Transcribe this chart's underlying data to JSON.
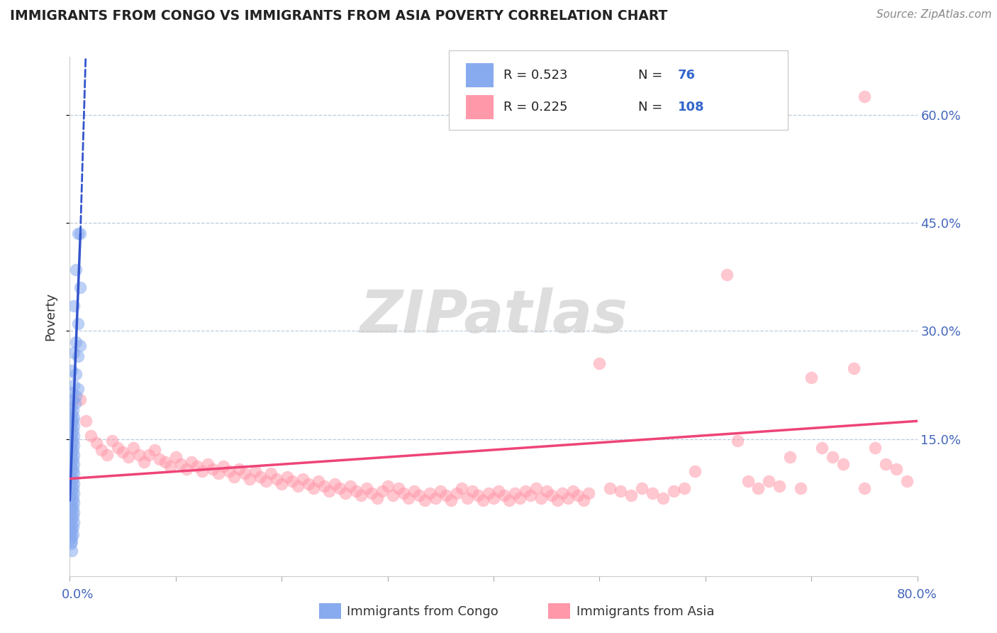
{
  "title": "IMMIGRANTS FROM CONGO VS IMMIGRANTS FROM ASIA POVERTY CORRELATION CHART",
  "source": "Source: ZipAtlas.com",
  "ylabel": "Poverty",
  "ytick_vals": [
    0.15,
    0.3,
    0.45,
    0.6
  ],
  "ytick_labels": [
    "15.0%",
    "30.0%",
    "45.0%",
    "60.0%"
  ],
  "xlim": [
    0.0,
    0.8
  ],
  "ylim": [
    -0.04,
    0.68
  ],
  "color_congo": "#88AAEE",
  "color_asia": "#FF99AA",
  "color_congo_line": "#3355CC",
  "color_asia_line": "#EE4477",
  "watermark": "ZIPatlas",
  "congo_points": [
    [
      0.008,
      0.435
    ],
    [
      0.01,
      0.435
    ],
    [
      0.006,
      0.385
    ],
    [
      0.01,
      0.36
    ],
    [
      0.004,
      0.335
    ],
    [
      0.008,
      0.31
    ],
    [
      0.006,
      0.285
    ],
    [
      0.01,
      0.28
    ],
    [
      0.004,
      0.27
    ],
    [
      0.008,
      0.265
    ],
    [
      0.002,
      0.245
    ],
    [
      0.006,
      0.24
    ],
    [
      0.004,
      0.225
    ],
    [
      0.008,
      0.22
    ],
    [
      0.002,
      0.215
    ],
    [
      0.006,
      0.21
    ],
    [
      0.003,
      0.205
    ],
    [
      0.005,
      0.2
    ],
    [
      0.001,
      0.195
    ],
    [
      0.003,
      0.19
    ],
    [
      0.002,
      0.185
    ],
    [
      0.004,
      0.18
    ],
    [
      0.001,
      0.178
    ],
    [
      0.003,
      0.175
    ],
    [
      0.002,
      0.172
    ],
    [
      0.004,
      0.168
    ],
    [
      0.001,
      0.165
    ],
    [
      0.003,
      0.162
    ],
    [
      0.002,
      0.158
    ],
    [
      0.004,
      0.155
    ],
    [
      0.001,
      0.152
    ],
    [
      0.003,
      0.148
    ],
    [
      0.002,
      0.145
    ],
    [
      0.004,
      0.142
    ],
    [
      0.001,
      0.138
    ],
    [
      0.003,
      0.135
    ],
    [
      0.002,
      0.132
    ],
    [
      0.004,
      0.128
    ],
    [
      0.001,
      0.125
    ],
    [
      0.003,
      0.122
    ],
    [
      0.002,
      0.118
    ],
    [
      0.004,
      0.115
    ],
    [
      0.001,
      0.112
    ],
    [
      0.003,
      0.108
    ],
    [
      0.002,
      0.105
    ],
    [
      0.004,
      0.102
    ],
    [
      0.001,
      0.098
    ],
    [
      0.003,
      0.095
    ],
    [
      0.002,
      0.092
    ],
    [
      0.004,
      0.088
    ],
    [
      0.001,
      0.085
    ],
    [
      0.003,
      0.082
    ],
    [
      0.002,
      0.078
    ],
    [
      0.004,
      0.075
    ],
    [
      0.001,
      0.072
    ],
    [
      0.003,
      0.068
    ],
    [
      0.002,
      0.065
    ],
    [
      0.004,
      0.062
    ],
    [
      0.001,
      0.058
    ],
    [
      0.003,
      0.055
    ],
    [
      0.002,
      0.052
    ],
    [
      0.004,
      0.048
    ],
    [
      0.001,
      0.045
    ],
    [
      0.003,
      0.042
    ],
    [
      0.002,
      0.038
    ],
    [
      0.004,
      0.035
    ],
    [
      0.001,
      0.032
    ],
    [
      0.003,
      0.028
    ],
    [
      0.002,
      0.025
    ],
    [
      0.001,
      0.022
    ],
    [
      0.003,
      0.018
    ],
    [
      0.002,
      0.015
    ],
    [
      0.001,
      0.012
    ],
    [
      0.002,
      0.008
    ],
    [
      0.001,
      0.005
    ],
    [
      0.002,
      -0.005
    ]
  ],
  "asia_points": [
    [
      0.01,
      0.205
    ],
    [
      0.015,
      0.175
    ],
    [
      0.02,
      0.155
    ],
    [
      0.025,
      0.145
    ],
    [
      0.03,
      0.135
    ],
    [
      0.035,
      0.128
    ],
    [
      0.04,
      0.148
    ],
    [
      0.045,
      0.138
    ],
    [
      0.05,
      0.132
    ],
    [
      0.055,
      0.125
    ],
    [
      0.06,
      0.138
    ],
    [
      0.065,
      0.128
    ],
    [
      0.07,
      0.118
    ],
    [
      0.075,
      0.128
    ],
    [
      0.08,
      0.135
    ],
    [
      0.085,
      0.122
    ],
    [
      0.09,
      0.118
    ],
    [
      0.095,
      0.112
    ],
    [
      0.1,
      0.125
    ],
    [
      0.105,
      0.115
    ],
    [
      0.11,
      0.108
    ],
    [
      0.115,
      0.118
    ],
    [
      0.12,
      0.112
    ],
    [
      0.125,
      0.105
    ],
    [
      0.13,
      0.115
    ],
    [
      0.135,
      0.108
    ],
    [
      0.14,
      0.102
    ],
    [
      0.145,
      0.112
    ],
    [
      0.15,
      0.105
    ],
    [
      0.155,
      0.098
    ],
    [
      0.16,
      0.108
    ],
    [
      0.165,
      0.102
    ],
    [
      0.17,
      0.095
    ],
    [
      0.175,
      0.105
    ],
    [
      0.18,
      0.098
    ],
    [
      0.185,
      0.092
    ],
    [
      0.19,
      0.102
    ],
    [
      0.195,
      0.095
    ],
    [
      0.2,
      0.088
    ],
    [
      0.205,
      0.098
    ],
    [
      0.21,
      0.092
    ],
    [
      0.215,
      0.085
    ],
    [
      0.22,
      0.095
    ],
    [
      0.225,
      0.088
    ],
    [
      0.23,
      0.082
    ],
    [
      0.235,
      0.092
    ],
    [
      0.24,
      0.085
    ],
    [
      0.245,
      0.078
    ],
    [
      0.25,
      0.088
    ],
    [
      0.255,
      0.082
    ],
    [
      0.26,
      0.075
    ],
    [
      0.265,
      0.085
    ],
    [
      0.27,
      0.078
    ],
    [
      0.275,
      0.072
    ],
    [
      0.28,
      0.082
    ],
    [
      0.285,
      0.075
    ],
    [
      0.29,
      0.068
    ],
    [
      0.295,
      0.078
    ],
    [
      0.3,
      0.085
    ],
    [
      0.305,
      0.072
    ],
    [
      0.31,
      0.082
    ],
    [
      0.315,
      0.075
    ],
    [
      0.32,
      0.068
    ],
    [
      0.325,
      0.078
    ],
    [
      0.33,
      0.072
    ],
    [
      0.335,
      0.065
    ],
    [
      0.34,
      0.075
    ],
    [
      0.345,
      0.068
    ],
    [
      0.35,
      0.078
    ],
    [
      0.355,
      0.072
    ],
    [
      0.36,
      0.065
    ],
    [
      0.365,
      0.075
    ],
    [
      0.37,
      0.082
    ],
    [
      0.375,
      0.068
    ],
    [
      0.38,
      0.078
    ],
    [
      0.385,
      0.072
    ],
    [
      0.39,
      0.065
    ],
    [
      0.395,
      0.075
    ],
    [
      0.4,
      0.068
    ],
    [
      0.405,
      0.078
    ],
    [
      0.41,
      0.072
    ],
    [
      0.415,
      0.065
    ],
    [
      0.42,
      0.075
    ],
    [
      0.425,
      0.068
    ],
    [
      0.43,
      0.078
    ],
    [
      0.435,
      0.072
    ],
    [
      0.44,
      0.082
    ],
    [
      0.445,
      0.068
    ],
    [
      0.45,
      0.078
    ],
    [
      0.455,
      0.072
    ],
    [
      0.46,
      0.065
    ],
    [
      0.465,
      0.075
    ],
    [
      0.47,
      0.068
    ],
    [
      0.475,
      0.078
    ],
    [
      0.48,
      0.072
    ],
    [
      0.485,
      0.065
    ],
    [
      0.49,
      0.075
    ],
    [
      0.5,
      0.255
    ],
    [
      0.51,
      0.082
    ],
    [
      0.52,
      0.078
    ],
    [
      0.53,
      0.072
    ],
    [
      0.54,
      0.082
    ],
    [
      0.55,
      0.075
    ],
    [
      0.56,
      0.068
    ],
    [
      0.57,
      0.078
    ],
    [
      0.58,
      0.082
    ],
    [
      0.59,
      0.105
    ],
    [
      0.62,
      0.378
    ],
    [
      0.63,
      0.148
    ],
    [
      0.64,
      0.092
    ],
    [
      0.65,
      0.082
    ],
    [
      0.66,
      0.092
    ],
    [
      0.67,
      0.085
    ],
    [
      0.68,
      0.125
    ],
    [
      0.69,
      0.082
    ],
    [
      0.7,
      0.235
    ],
    [
      0.71,
      0.138
    ],
    [
      0.72,
      0.125
    ],
    [
      0.73,
      0.115
    ],
    [
      0.74,
      0.248
    ],
    [
      0.75,
      0.082
    ],
    [
      0.76,
      0.138
    ],
    [
      0.77,
      0.115
    ],
    [
      0.78,
      0.108
    ],
    [
      0.79,
      0.092
    ],
    [
      0.75,
      0.625
    ]
  ],
  "congo_trendline": [
    [
      0.0,
      0.065
    ],
    [
      0.01,
      0.435
    ]
  ],
  "congo_trendline_ext": [
    [
      0.01,
      0.435
    ],
    [
      0.015,
      0.68
    ]
  ],
  "asia_trendline": [
    [
      0.0,
      0.095
    ],
    [
      0.8,
      0.175
    ]
  ]
}
